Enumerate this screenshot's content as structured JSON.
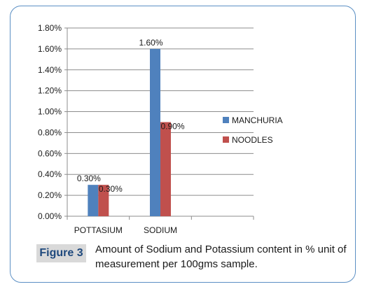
{
  "chart_data": {
    "type": "bar",
    "categories": [
      "POTTASIUM",
      "SODIUM"
    ],
    "series": [
      {
        "name": "MANCHURIA",
        "values": [
          0.3,
          1.6
        ],
        "labels": [
          "0.30%",
          "1.60%"
        ],
        "color": "#4f81bd"
      },
      {
        "name": "NOODLES",
        "values": [
          0.3,
          0.9
        ],
        "labels": [
          "0.30%",
          "0.90%"
        ],
        "color": "#c0504d"
      }
    ],
    "title": "",
    "xlabel": "",
    "ylabel": "",
    "ylim": [
      0,
      1.8
    ],
    "yticks": [
      "0.00%",
      "0.20%",
      "0.40%",
      "0.60%",
      "0.80%",
      "1.00%",
      "1.20%",
      "1.40%",
      "1.60%",
      "1.80%"
    ],
    "grid": true,
    "legend_position": "right"
  },
  "caption": {
    "label": "Figure 3",
    "text": "Amount of Sodium and Potassium content in % unit of measurement per 100gms sample."
  }
}
